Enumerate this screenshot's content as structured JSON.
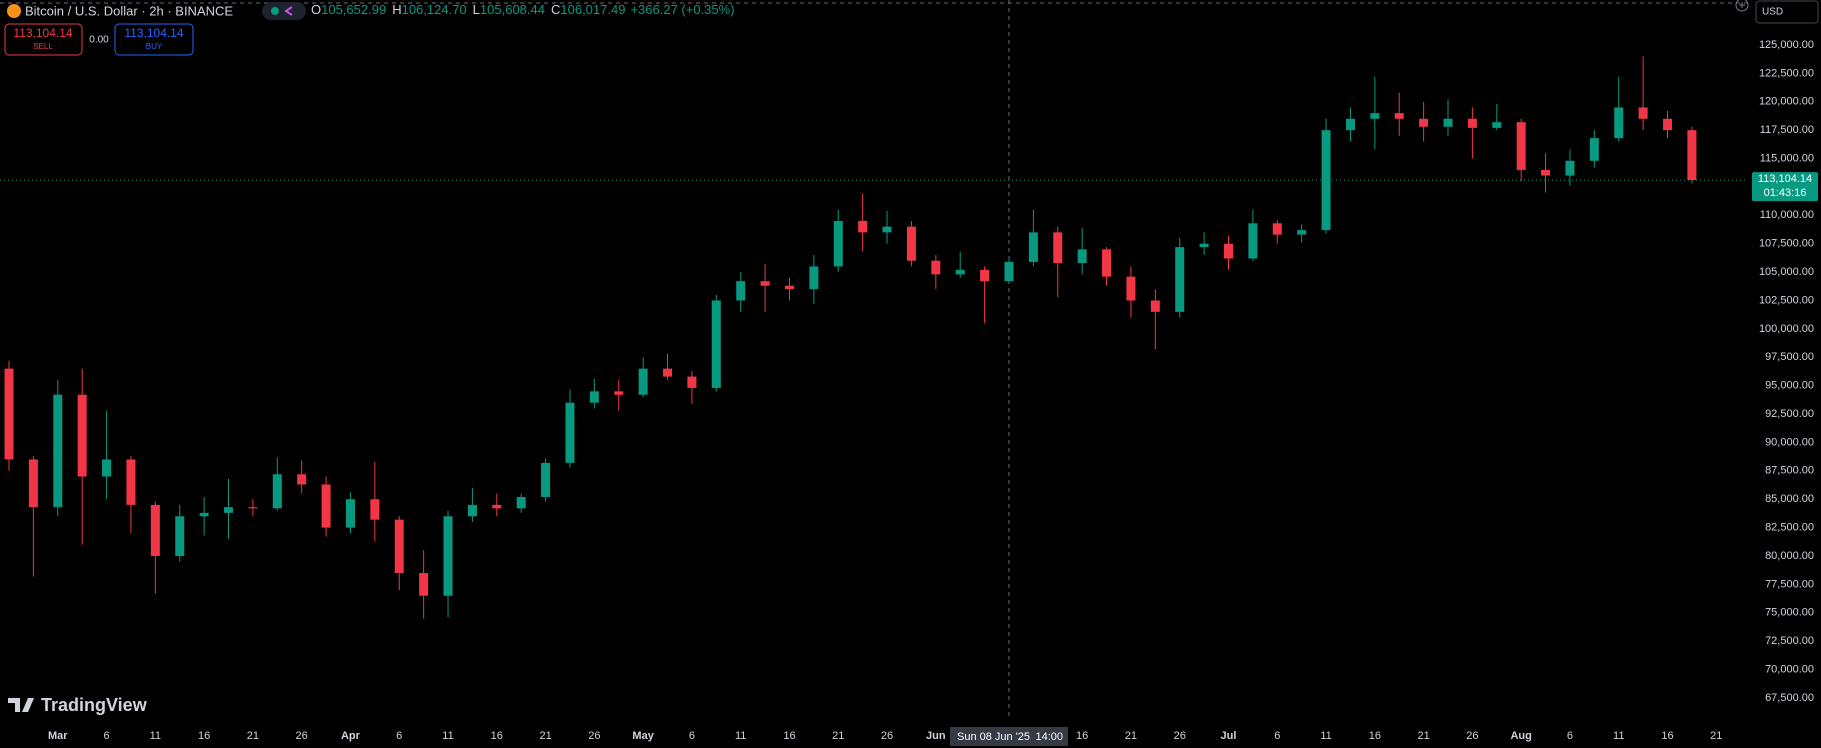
{
  "header": {
    "symbol": "Bitcoin / U.S. Dollar · 2h · BINANCE",
    "ohlc": [
      {
        "key": "O",
        "value": "105,652.99"
      },
      {
        "key": "H",
        "value": "106,124.70"
      },
      {
        "key": "L",
        "value": "105,608.44"
      },
      {
        "key": "C",
        "value": "106,017.49"
      }
    ],
    "change": "+366.27 (+0.35%)"
  },
  "trade": {
    "sell_price": "113,104.14",
    "sell": "SELL",
    "spread": "0.00",
    "buy_price": "113,104.14",
    "buy": "BUY"
  },
  "currency": "USD",
  "logo": "TradingView",
  "crosshair": {
    "date": "Sun 08 Jun '25",
    "time": "14:00"
  },
  "chart_data": {
    "type": "candlestick",
    "categories": [
      null,
      null,
      "Mar",
      null,
      "6",
      null,
      "11",
      null,
      "16",
      null,
      "21",
      null,
      "26",
      null,
      "Apr",
      null,
      "6",
      null,
      "11",
      null,
      "16",
      null,
      "21",
      null,
      "26",
      null,
      "May",
      null,
      "6",
      null,
      "11",
      null,
      "16",
      null,
      "21",
      null,
      "26",
      null,
      "Jun",
      null,
      "6",
      null,
      "11",
      null,
      "16",
      null,
      "21",
      null,
      "26",
      null,
      "Jul",
      null,
      "6",
      null,
      "11",
      null,
      "16",
      null,
      "21",
      null,
      "26",
      null,
      "Aug",
      null,
      "6",
      null,
      "11",
      null,
      "16",
      null,
      "21"
    ],
    "open": [
      96500,
      88500,
      84300,
      94200,
      87000,
      88500,
      84500,
      80000,
      83500,
      83800,
      84300,
      84200,
      87200,
      86300,
      82500,
      85000,
      83200,
      78500,
      76500,
      83500,
      84500,
      84200,
      85200,
      88200,
      93500,
      94500,
      94200,
      96500,
      95800,
      94800,
      102500,
      104200,
      103800,
      103500,
      105500,
      109500,
      108500,
      109000,
      106000,
      104800,
      105200,
      104200,
      105900,
      108500,
      105800,
      107000,
      104600,
      102500,
      101500,
      107200,
      107500,
      106200,
      109300,
      108300,
      108700,
      117500,
      118500,
      119000,
      118500,
      117800,
      118500,
      117700,
      118200,
      114000,
      113500,
      114800,
      116800,
      119500,
      118500,
      117500,
      null
    ],
    "high": [
      97200,
      88800,
      95500,
      96500,
      92800,
      88800,
      84800,
      84500,
      85200,
      86800,
      85000,
      88700,
      88400,
      87000,
      85600,
      88300,
      83500,
      80500,
      84000,
      86000,
      85500,
      85500,
      88600,
      94700,
      95600,
      95500,
      97500,
      97800,
      96300,
      103000,
      105000,
      105700,
      104500,
      106500,
      110500,
      111900,
      110400,
      109500,
      106500,
      106800,
      105500,
      106200,
      110500,
      109000,
      108900,
      107200,
      105500,
      103500,
      108000,
      108500,
      108200,
      110500,
      109600,
      109200,
      118500,
      119500,
      122200,
      120800,
      120000,
      120200,
      119500,
      119800,
      118500,
      115500,
      115800,
      117500,
      122200,
      124000,
      119200,
      117800,
      null
    ],
    "low": [
      87500,
      78200,
      83500,
      81000,
      85000,
      82000,
      76700,
      79500,
      81800,
      81500,
      83500,
      84000,
      85500,
      81700,
      82000,
      81300,
      77000,
      74500,
      74600,
      83000,
      83500,
      83800,
      84800,
      87800,
      93000,
      92800,
      94000,
      95500,
      93400,
      94500,
      101500,
      101500,
      102500,
      102200,
      105000,
      106800,
      107500,
      105500,
      103500,
      104500,
      100500,
      104000,
      105500,
      102800,
      104800,
      103800,
      101000,
      98200,
      101000,
      106500,
      105200,
      106000,
      107500,
      107600,
      108400,
      116500,
      115800,
      117000,
      116500,
      117000,
      115000,
      117500,
      113000,
      112000,
      112600,
      114200,
      116500,
      117500,
      116800,
      112800,
      null
    ],
    "close": [
      88500,
      84300,
      94200,
      87000,
      88500,
      84500,
      80000,
      83500,
      83800,
      84300,
      84200,
      87200,
      86300,
      82500,
      85000,
      83200,
      78500,
      76500,
      83500,
      84500,
      84200,
      85200,
      88200,
      93500,
      94500,
      94200,
      96500,
      95800,
      94800,
      102500,
      104200,
      103800,
      103500,
      105500,
      109500,
      108500,
      109000,
      106000,
      104800,
      105200,
      104200,
      105900,
      108500,
      105800,
      107000,
      104600,
      102500,
      101500,
      107200,
      107500,
      106200,
      109300,
      108300,
      108700,
      117500,
      118500,
      119000,
      118500,
      117800,
      118500,
      117700,
      118200,
      114000,
      113500,
      114800,
      116800,
      119500,
      118500,
      117500,
      113104.14,
      null
    ],
    "up_color": "#089981",
    "down_color": "#f23645",
    "ylim": [
      65560,
      128960
    ],
    "yticks": [
      {
        "value": 125000,
        "label": "125,000.00"
      },
      {
        "value": 122500,
        "label": "122,500.00"
      },
      {
        "value": 120000,
        "label": "120,000.00"
      },
      {
        "value": 117500,
        "label": "117,500.00"
      },
      {
        "value": 115000,
        "label": "115,000.00"
      },
      {
        "value": 112500,
        "label": "112,500.00"
      },
      {
        "value": 110000,
        "label": "110,000.00"
      },
      {
        "value": 107500,
        "label": "107,500.00"
      },
      {
        "value": 105000,
        "label": "105,000.00"
      },
      {
        "value": 102500,
        "label": "102,500.00"
      },
      {
        "value": 100000,
        "label": "100,000.00"
      },
      {
        "value": 97500,
        "label": "97,500.00"
      },
      {
        "value": 95000,
        "label": "95,000.00"
      },
      {
        "value": 92500,
        "label": "92,500.00"
      },
      {
        "value": 90000,
        "label": "90,000.00"
      },
      {
        "value": 87500,
        "label": "87,500.00"
      },
      {
        "value": 85000,
        "label": "85,000.00"
      },
      {
        "value": 82500,
        "label": "82,500.00"
      },
      {
        "value": 80000,
        "label": "80,000.00"
      },
      {
        "value": 77500,
        "label": "77,500.00"
      },
      {
        "value": 75000,
        "label": "75,000.00"
      },
      {
        "value": 72500,
        "label": "72,500.00"
      },
      {
        "value": 70000,
        "label": "70,000.00"
      },
      {
        "value": 67500,
        "label": "67,500.00"
      }
    ],
    "grid": false,
    "last_price": {
      "value": 113104.14,
      "label": "113,104.14"
    },
    "countdown": "01:43:16"
  }
}
